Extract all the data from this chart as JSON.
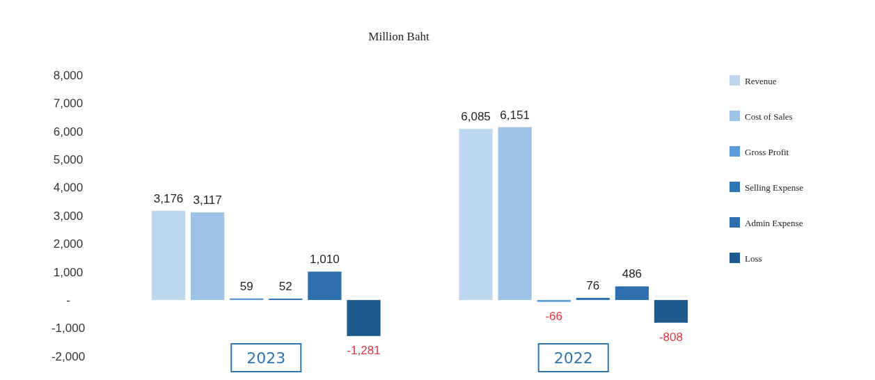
{
  "chart_data": {
    "type": "bar",
    "title": "Million Baht",
    "categories": [
      "2023",
      "2022"
    ],
    "series": [
      {
        "name": "Revenue",
        "color": "#bdd7ee",
        "values": [
          3176,
          6085
        ],
        "value_labels": [
          "3,176",
          "6,085"
        ]
      },
      {
        "name": "Cost of Sales",
        "color": "#9dc3e6",
        "values": [
          3117,
          6151
        ],
        "value_labels": [
          "3,117",
          "6,151"
        ]
      },
      {
        "name": "Gross Profit",
        "color": "#5b9bd5",
        "values": [
          59,
          -66
        ],
        "value_labels": [
          "59",
          "-66"
        ]
      },
      {
        "name": "Selling Expense",
        "color": "#2e75b6",
        "values": [
          52,
          76
        ],
        "value_labels": [
          "52",
          "76"
        ]
      },
      {
        "name": "Admin Expense",
        "color": "#2e6fae",
        "values": [
          1010,
          486
        ],
        "value_labels": [
          "1,010",
          "486"
        ]
      },
      {
        "name": "Loss",
        "color": "#1f5a8f",
        "values": [
          -1281,
          -808
        ],
        "value_labels": [
          "-1,281",
          "-808"
        ]
      }
    ],
    "ylim": [
      -2400,
      8000
    ],
    "yticks": [
      {
        "value": 8000,
        "label": "8,000"
      },
      {
        "value": 7000,
        "label": "7,000"
      },
      {
        "value": 6000,
        "label": "6,000"
      },
      {
        "value": 5000,
        "label": "5,000"
      },
      {
        "value": 4000,
        "label": "4,000"
      },
      {
        "value": 3000,
        "label": "3,000"
      },
      {
        "value": 2000,
        "label": "2,000"
      },
      {
        "value": 1000,
        "label": "1,000"
      },
      {
        "value": 0,
        "label": "-"
      },
      {
        "value": -1000,
        "label": "-1,000"
      },
      {
        "value": -2000,
        "label": "-2,000"
      }
    ],
    "legend": "right",
    "grid": false
  }
}
